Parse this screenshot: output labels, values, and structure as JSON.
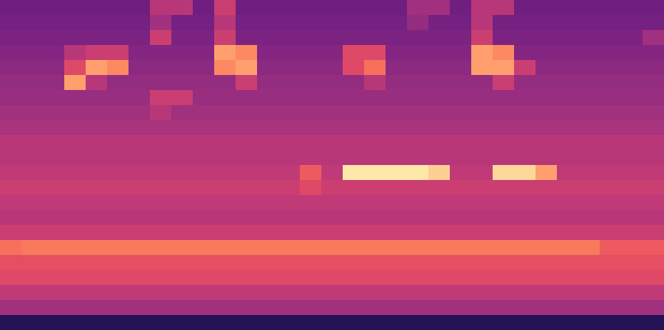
{
  "chart_data": {
    "type": "heatmap",
    "color": "magma",
    "tick_labels": false,
    "zlim": [
      0,
      1
    ],
    "cells": [
      [
        0.33,
        0.33,
        0.33,
        0.33,
        0.33,
        0.33,
        0.33,
        0.5,
        0.5,
        0.33,
        0.55,
        0.33,
        0.33,
        0.33,
        0.33,
        0.33,
        0.33,
        0.33,
        0.33,
        0.45,
        0.45,
        0.33,
        0.5,
        0.5,
        0.33,
        0.33,
        0.33,
        0.33,
        0.33,
        0.33,
        0.33
      ],
      [
        0.34,
        0.34,
        0.34,
        0.34,
        0.34,
        0.34,
        0.34,
        0.45,
        0.34,
        0.34,
        0.5,
        0.34,
        0.34,
        0.34,
        0.34,
        0.34,
        0.34,
        0.34,
        0.34,
        0.42,
        0.34,
        0.34,
        0.5,
        0.34,
        0.34,
        0.34,
        0.34,
        0.34,
        0.34,
        0.34,
        0.34
      ],
      [
        0.36,
        0.36,
        0.36,
        0.36,
        0.36,
        0.36,
        0.36,
        0.55,
        0.36,
        0.36,
        0.55,
        0.36,
        0.36,
        0.36,
        0.36,
        0.36,
        0.36,
        0.36,
        0.36,
        0.36,
        0.36,
        0.36,
        0.55,
        0.36,
        0.36,
        0.36,
        0.36,
        0.36,
        0.36,
        0.36,
        0.45
      ],
      [
        0.38,
        0.38,
        0.38,
        0.5,
        0.55,
        0.55,
        0.38,
        0.38,
        0.38,
        0.38,
        0.8,
        0.75,
        0.38,
        0.38,
        0.38,
        0.38,
        0.6,
        0.6,
        0.38,
        0.38,
        0.38,
        0.38,
        0.8,
        0.75,
        0.38,
        0.38,
        0.38,
        0.38,
        0.38,
        0.38,
        0.38
      ],
      [
        0.4,
        0.4,
        0.4,
        0.6,
        0.8,
        0.75,
        0.4,
        0.4,
        0.4,
        0.4,
        0.75,
        0.8,
        0.4,
        0.4,
        0.4,
        0.4,
        0.6,
        0.7,
        0.4,
        0.4,
        0.4,
        0.4,
        0.8,
        0.8,
        0.55,
        0.4,
        0.4,
        0.4,
        0.4,
        0.4,
        0.4
      ],
      [
        0.42,
        0.42,
        0.42,
        0.8,
        0.5,
        0.42,
        0.42,
        0.42,
        0.42,
        0.42,
        0.42,
        0.55,
        0.42,
        0.42,
        0.42,
        0.42,
        0.42,
        0.5,
        0.42,
        0.42,
        0.42,
        0.42,
        0.42,
        0.55,
        0.42,
        0.42,
        0.42,
        0.42,
        0.42,
        0.42,
        0.42
      ],
      [
        0.43,
        0.43,
        0.43,
        0.43,
        0.43,
        0.43,
        0.43,
        0.55,
        0.55,
        0.43,
        0.43,
        0.43,
        0.43,
        0.43,
        0.43,
        0.43,
        0.43,
        0.43,
        0.43,
        0.43,
        0.43,
        0.43,
        0.43,
        0.43,
        0.43,
        0.43,
        0.43,
        0.43,
        0.43,
        0.43,
        0.43
      ],
      [
        0.45,
        0.45,
        0.45,
        0.45,
        0.45,
        0.45,
        0.45,
        0.5,
        0.45,
        0.45,
        0.45,
        0.45,
        0.45,
        0.45,
        0.45,
        0.45,
        0.45,
        0.45,
        0.45,
        0.45,
        0.45,
        0.45,
        0.45,
        0.45,
        0.45,
        0.45,
        0.45,
        0.45,
        0.45,
        0.45,
        0.45
      ],
      [
        0.47,
        0.47,
        0.47,
        0.47,
        0.47,
        0.47,
        0.47,
        0.47,
        0.47,
        0.47,
        0.47,
        0.47,
        0.47,
        0.47,
        0.47,
        0.47,
        0.47,
        0.47,
        0.47,
        0.47,
        0.47,
        0.47,
        0.47,
        0.47,
        0.47,
        0.47,
        0.47,
        0.47,
        0.47,
        0.47,
        0.47
      ],
      [
        0.5,
        0.5,
        0.5,
        0.5,
        0.5,
        0.5,
        0.5,
        0.5,
        0.5,
        0.5,
        0.5,
        0.5,
        0.5,
        0.5,
        0.5,
        0.5,
        0.5,
        0.5,
        0.5,
        0.5,
        0.5,
        0.5,
        0.5,
        0.5,
        0.5,
        0.5,
        0.5,
        0.5,
        0.5,
        0.5,
        0.5
      ],
      [
        0.5,
        0.5,
        0.5,
        0.5,
        0.5,
        0.5,
        0.5,
        0.5,
        0.5,
        0.5,
        0.5,
        0.5,
        0.5,
        0.5,
        0.5,
        0.5,
        0.5,
        0.5,
        0.5,
        0.5,
        0.5,
        0.5,
        0.5,
        0.5,
        0.5,
        0.5,
        0.5,
        0.5,
        0.5,
        0.5,
        0.5
      ],
      [
        0.52,
        0.52,
        0.52,
        0.52,
        0.52,
        0.52,
        0.52,
        0.52,
        0.52,
        0.52,
        0.52,
        0.52,
        0.52,
        0.52,
        0.65,
        0.52,
        0.95,
        0.95,
        0.95,
        0.95,
        0.9,
        0.52,
        0.52,
        0.92,
        0.92,
        0.8,
        0.52,
        0.52,
        0.52,
        0.52,
        0.52
      ],
      [
        0.55,
        0.55,
        0.55,
        0.55,
        0.55,
        0.55,
        0.55,
        0.55,
        0.55,
        0.55,
        0.55,
        0.55,
        0.55,
        0.55,
        0.6,
        0.55,
        0.55,
        0.55,
        0.55,
        0.55,
        0.55,
        0.55,
        0.55,
        0.55,
        0.55,
        0.55,
        0.55,
        0.55,
        0.55,
        0.55,
        0.55
      ],
      [
        0.52,
        0.52,
        0.52,
        0.52,
        0.52,
        0.52,
        0.52,
        0.52,
        0.52,
        0.52,
        0.52,
        0.52,
        0.52,
        0.52,
        0.52,
        0.52,
        0.52,
        0.52,
        0.52,
        0.52,
        0.52,
        0.52,
        0.52,
        0.52,
        0.52,
        0.52,
        0.52,
        0.52,
        0.52,
        0.52,
        0.52
      ],
      [
        0.5,
        0.5,
        0.5,
        0.5,
        0.5,
        0.5,
        0.5,
        0.5,
        0.5,
        0.5,
        0.5,
        0.5,
        0.5,
        0.5,
        0.5,
        0.5,
        0.5,
        0.5,
        0.5,
        0.5,
        0.5,
        0.5,
        0.5,
        0.5,
        0.5,
        0.5,
        0.5,
        0.5,
        0.5,
        0.5,
        0.5
      ],
      [
        0.55,
        0.55,
        0.55,
        0.55,
        0.55,
        0.55,
        0.55,
        0.55,
        0.55,
        0.55,
        0.55,
        0.55,
        0.55,
        0.55,
        0.55,
        0.55,
        0.55,
        0.55,
        0.55,
        0.55,
        0.55,
        0.55,
        0.55,
        0.55,
        0.55,
        0.55,
        0.55,
        0.55,
        0.55,
        0.55,
        0.55
      ],
      [
        0.7,
        0.72,
        0.72,
        0.72,
        0.72,
        0.72,
        0.72,
        0.72,
        0.72,
        0.72,
        0.72,
        0.72,
        0.72,
        0.72,
        0.72,
        0.72,
        0.72,
        0.72,
        0.72,
        0.72,
        0.72,
        0.72,
        0.72,
        0.72,
        0.72,
        0.72,
        0.72,
        0.72,
        0.65,
        0.65,
        0.65
      ],
      [
        0.62,
        0.62,
        0.62,
        0.62,
        0.62,
        0.62,
        0.62,
        0.62,
        0.62,
        0.62,
        0.62,
        0.62,
        0.62,
        0.62,
        0.62,
        0.62,
        0.62,
        0.62,
        0.62,
        0.62,
        0.62,
        0.62,
        0.62,
        0.62,
        0.62,
        0.62,
        0.62,
        0.62,
        0.62,
        0.62,
        0.62
      ],
      [
        0.6,
        0.6,
        0.6,
        0.6,
        0.6,
        0.6,
        0.6,
        0.6,
        0.6,
        0.6,
        0.6,
        0.6,
        0.6,
        0.6,
        0.6,
        0.6,
        0.6,
        0.6,
        0.6,
        0.6,
        0.6,
        0.6,
        0.6,
        0.6,
        0.6,
        0.6,
        0.6,
        0.6,
        0.6,
        0.6,
        0.6
      ],
      [
        0.52,
        0.52,
        0.52,
        0.52,
        0.52,
        0.52,
        0.52,
        0.52,
        0.52,
        0.52,
        0.52,
        0.52,
        0.52,
        0.52,
        0.52,
        0.52,
        0.52,
        0.52,
        0.52,
        0.52,
        0.52,
        0.52,
        0.52,
        0.52,
        0.52,
        0.52,
        0.52,
        0.52,
        0.52,
        0.52,
        0.52
      ],
      [
        0.45,
        0.45,
        0.45,
        0.45,
        0.45,
        0.45,
        0.45,
        0.45,
        0.45,
        0.45,
        0.45,
        0.45,
        0.45,
        0.45,
        0.45,
        0.45,
        0.45,
        0.45,
        0.45,
        0.45,
        0.45,
        0.45,
        0.45,
        0.45,
        0.45,
        0.45,
        0.45,
        0.45,
        0.45,
        0.45,
        0.45
      ],
      [
        0.15,
        0.15,
        0.15,
        0.15,
        0.15,
        0.15,
        0.15,
        0.15,
        0.15,
        0.15,
        0.15,
        0.15,
        0.15,
        0.15,
        0.15,
        0.15,
        0.15,
        0.15,
        0.15,
        0.15,
        0.15,
        0.15,
        0.15,
        0.15,
        0.15,
        0.15,
        0.15,
        0.15,
        0.15,
        0.15,
        0.15
      ]
    ]
  }
}
